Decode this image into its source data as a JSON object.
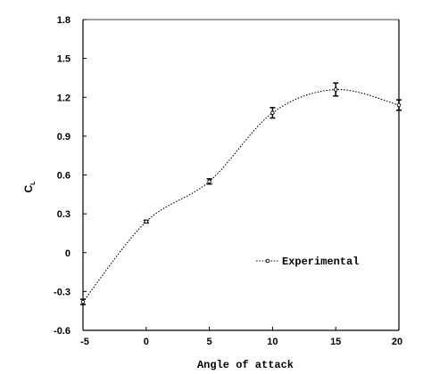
{
  "chart_data": {
    "type": "line",
    "xlabel": "Angle of attack",
    "ylabel_main": "C",
    "ylabel_sub": "L",
    "xlim": [
      -5,
      20
    ],
    "ylim": [
      -0.6,
      1.8
    ],
    "xticks": [
      -5,
      0,
      5,
      10,
      15,
      20
    ],
    "xtick_labels": [
      "-5",
      "0",
      "5",
      "10",
      "15",
      "20"
    ],
    "yticks": [
      -0.6,
      -0.3,
      0,
      0.3,
      0.6,
      0.9,
      1.2,
      1.5,
      1.8
    ],
    "ytick_labels": [
      "-0.6",
      "-0.3",
      "0",
      "0.3",
      "0.6",
      "0.9",
      "1.2",
      "1.5",
      "1.8"
    ],
    "grid": false,
    "legend_position": "center-right",
    "series": [
      {
        "name": "Experimental",
        "line_style": "dotted",
        "x": [
          -5,
          0,
          5,
          10,
          15,
          20
        ],
        "y": [
          -0.38,
          0.24,
          0.55,
          1.08,
          1.26,
          1.14
        ],
        "error": [
          0.02,
          0.01,
          0.02,
          0.04,
          0.05,
          0.04
        ]
      }
    ]
  }
}
